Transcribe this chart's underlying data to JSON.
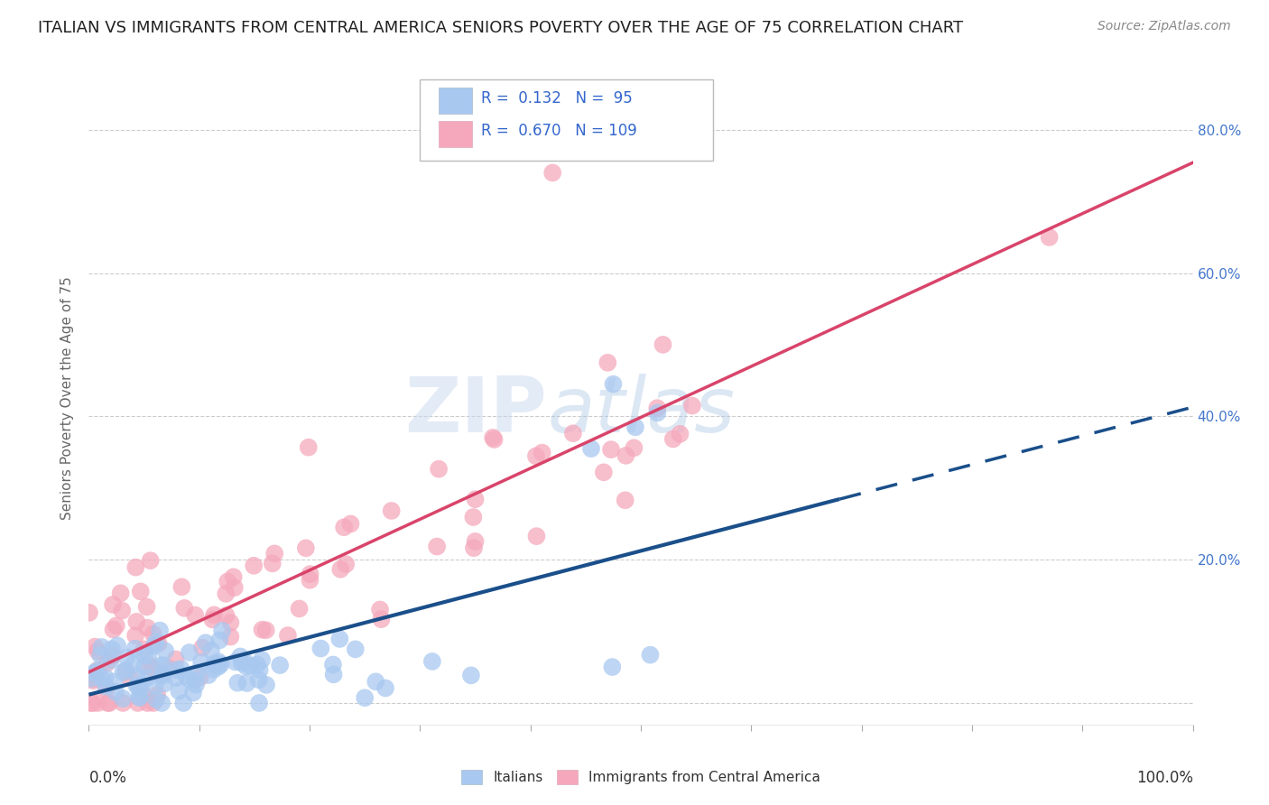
{
  "title": "ITALIAN VS IMMIGRANTS FROM CENTRAL AMERICA SENIORS POVERTY OVER THE AGE OF 75 CORRELATION CHART",
  "source": "Source: ZipAtlas.com",
  "ylabel": "Seniors Poverty Over the Age of 75",
  "xlim": [
    0.0,
    1.0
  ],
  "ylim": [
    -0.03,
    0.88
  ],
  "yticks": [
    0.0,
    0.2,
    0.4,
    0.6,
    0.8
  ],
  "right_ytick_labels": [
    "",
    "20.0%",
    "40.0%",
    "60.0%",
    "80.0%"
  ],
  "blue_color": "#A8C8F0",
  "pink_color": "#F5A8BC",
  "blue_line_color": "#1A4F8A",
  "pink_line_color": "#D9446A",
  "watermark_zip": "ZIP",
  "watermark_atlas": "atlas",
  "background_color": "#FFFFFF",
  "grid_color": "#CCCCCC",
  "title_color": "#222222",
  "axis_label_color": "#666666",
  "right_axis_color": "#4477CC",
  "legend_text_color": "#3366CC"
}
